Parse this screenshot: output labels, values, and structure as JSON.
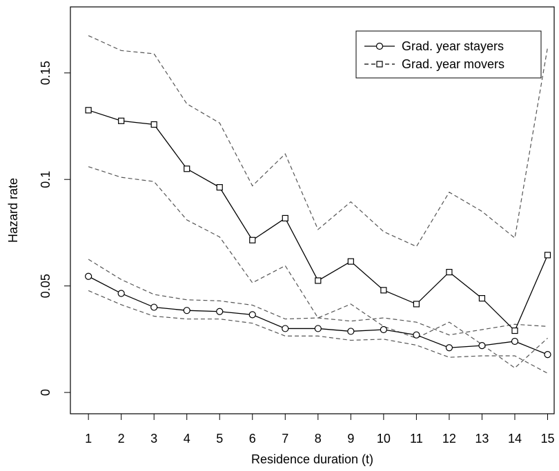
{
  "chart_data": {
    "type": "line",
    "title": "",
    "xlabel": "Residence duration (t)",
    "ylabel": "Hazard rate",
    "x": [
      1,
      2,
      3,
      4,
      5,
      6,
      7,
      8,
      9,
      10,
      11,
      12,
      13,
      14,
      15
    ],
    "x_tick_labels": [
      "1",
      "2",
      "3",
      "4",
      "5",
      "6",
      "7",
      "8",
      "9",
      "10",
      "11",
      "12",
      "13",
      "14",
      "15"
    ],
    "xlim": [
      0.45,
      15.2
    ],
    "ylim": [
      -0.01,
      0.181
    ],
    "y_ticks": [
      0,
      0.05,
      0.1,
      0.15
    ],
    "y_tick_labels": [
      "0",
      "0.05",
      "0.1",
      "0.15"
    ],
    "grid": false,
    "legend_position": "top-right",
    "series": [
      {
        "name": "Grad. year stayers",
        "marker": "circle",
        "line_style": "solid",
        "color": "#000000",
        "values": [
          0.0545,
          0.0465,
          0.04,
          0.0385,
          0.038,
          0.0365,
          0.03,
          0.03,
          0.0287,
          0.0295,
          0.027,
          0.021,
          0.022,
          0.024,
          0.0178
        ]
      },
      {
        "name": "Grad. year movers",
        "marker": "square",
        "line_style": "solid",
        "color": "#000000",
        "values": [
          0.1325,
          0.1275,
          0.1258,
          0.105,
          0.0963,
          0.0715,
          0.0818,
          0.0525,
          0.0615,
          0.048,
          0.0415,
          0.0565,
          0.0442,
          0.029,
          0.0645
        ]
      }
    ],
    "confidence_bands": [
      {
        "of": "Grad. year stayers",
        "line_style": "dashed",
        "color": "#555555",
        "upper": [
          0.0625,
          0.053,
          0.046,
          0.0435,
          0.043,
          0.041,
          0.0345,
          0.035,
          0.0335,
          0.035,
          0.033,
          0.027,
          0.0295,
          0.032,
          0.031
        ],
        "lower": [
          0.0478,
          0.0412,
          0.0358,
          0.0345,
          0.0345,
          0.0325,
          0.0265,
          0.0265,
          0.0245,
          0.025,
          0.0222,
          0.0165,
          0.0172,
          0.0172,
          0.009
        ]
      },
      {
        "of": "Grad. year movers",
        "line_style": "dashed",
        "color": "#555555",
        "upper": [
          0.1675,
          0.1605,
          0.159,
          0.1355,
          0.1265,
          0.097,
          0.112,
          0.0765,
          0.0895,
          0.0755,
          0.0685,
          0.094,
          0.085,
          0.0725,
          0.162
        ],
        "lower": [
          0.106,
          0.101,
          0.099,
          0.081,
          0.073,
          0.0515,
          0.0595,
          0.035,
          0.0415,
          0.031,
          0.0255,
          0.033,
          0.0225,
          0.0115,
          0.0255
        ]
      }
    ]
  }
}
